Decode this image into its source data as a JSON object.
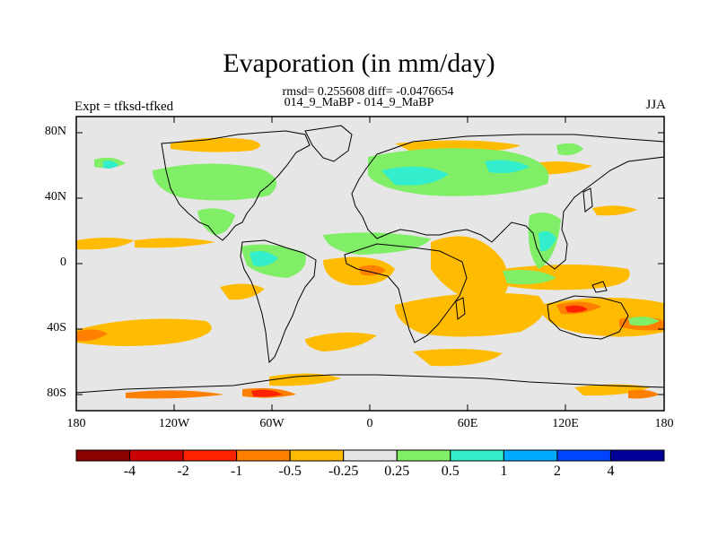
{
  "title": "Evaporation (in mm/day)",
  "stats_line": "rmsd= 0.255608 diff= -0.0476654",
  "subtitle": "014_9_MaBP - 014_9_MaBP",
  "left_label": "Expt = tfksd-tfked",
  "right_label": "JJA",
  "y_ticks": [
    "80N",
    "40N",
    "0",
    "40S",
    "80S"
  ],
  "x_ticks": [
    "180",
    "120W",
    "60W",
    "0",
    "60E",
    "120E",
    "180"
  ],
  "colorbar": {
    "colors": [
      "#8b0000",
      "#cc0000",
      "#ff2200",
      "#ff7f00",
      "#ffbb00",
      "#e6e6e6",
      "#80ee66",
      "#33eecc",
      "#00aaff",
      "#0044ff",
      "#000099"
    ],
    "labels": [
      "-4",
      "-2",
      "-1",
      "-0.5",
      "-0.25",
      "0.25",
      "0.5",
      "1",
      "2",
      "4"
    ]
  },
  "colors": {
    "background_field": "#e6e6e6",
    "negative_small": "#ffbb00",
    "negative_mid": "#ff7f00",
    "negative_large": "#ff2200",
    "positive_small": "#80ee66",
    "positive_mid": "#33eecc"
  }
}
